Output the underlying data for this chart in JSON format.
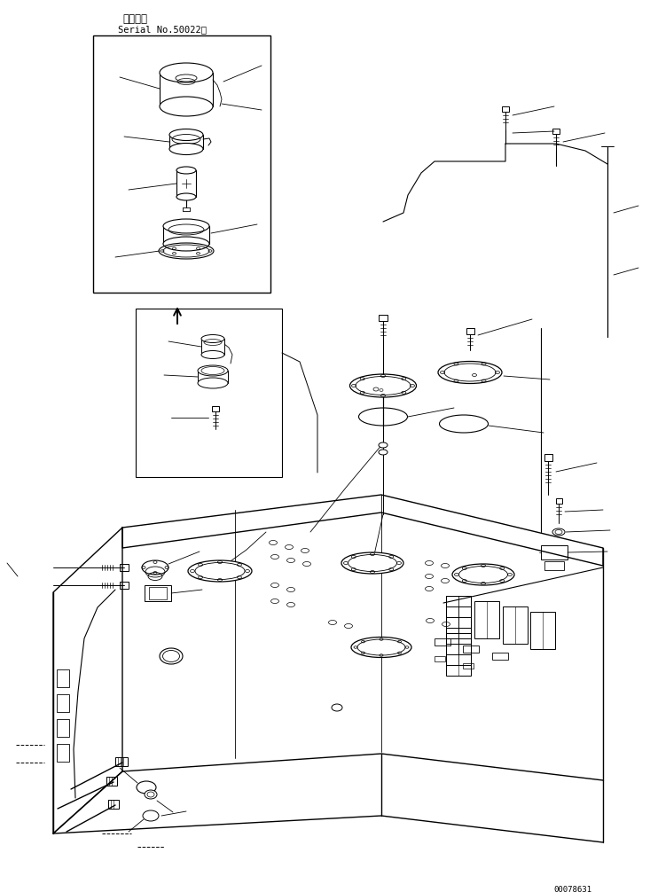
{
  "bg_color": "#ffffff",
  "line_color": "#000000",
  "text_color": "#000000",
  "title_jp": "適用号機",
  "title_en": "Serial No.50022～",
  "part_number": "00078631",
  "fig_width": 7.33,
  "fig_height": 10.06,
  "dpi": 100
}
